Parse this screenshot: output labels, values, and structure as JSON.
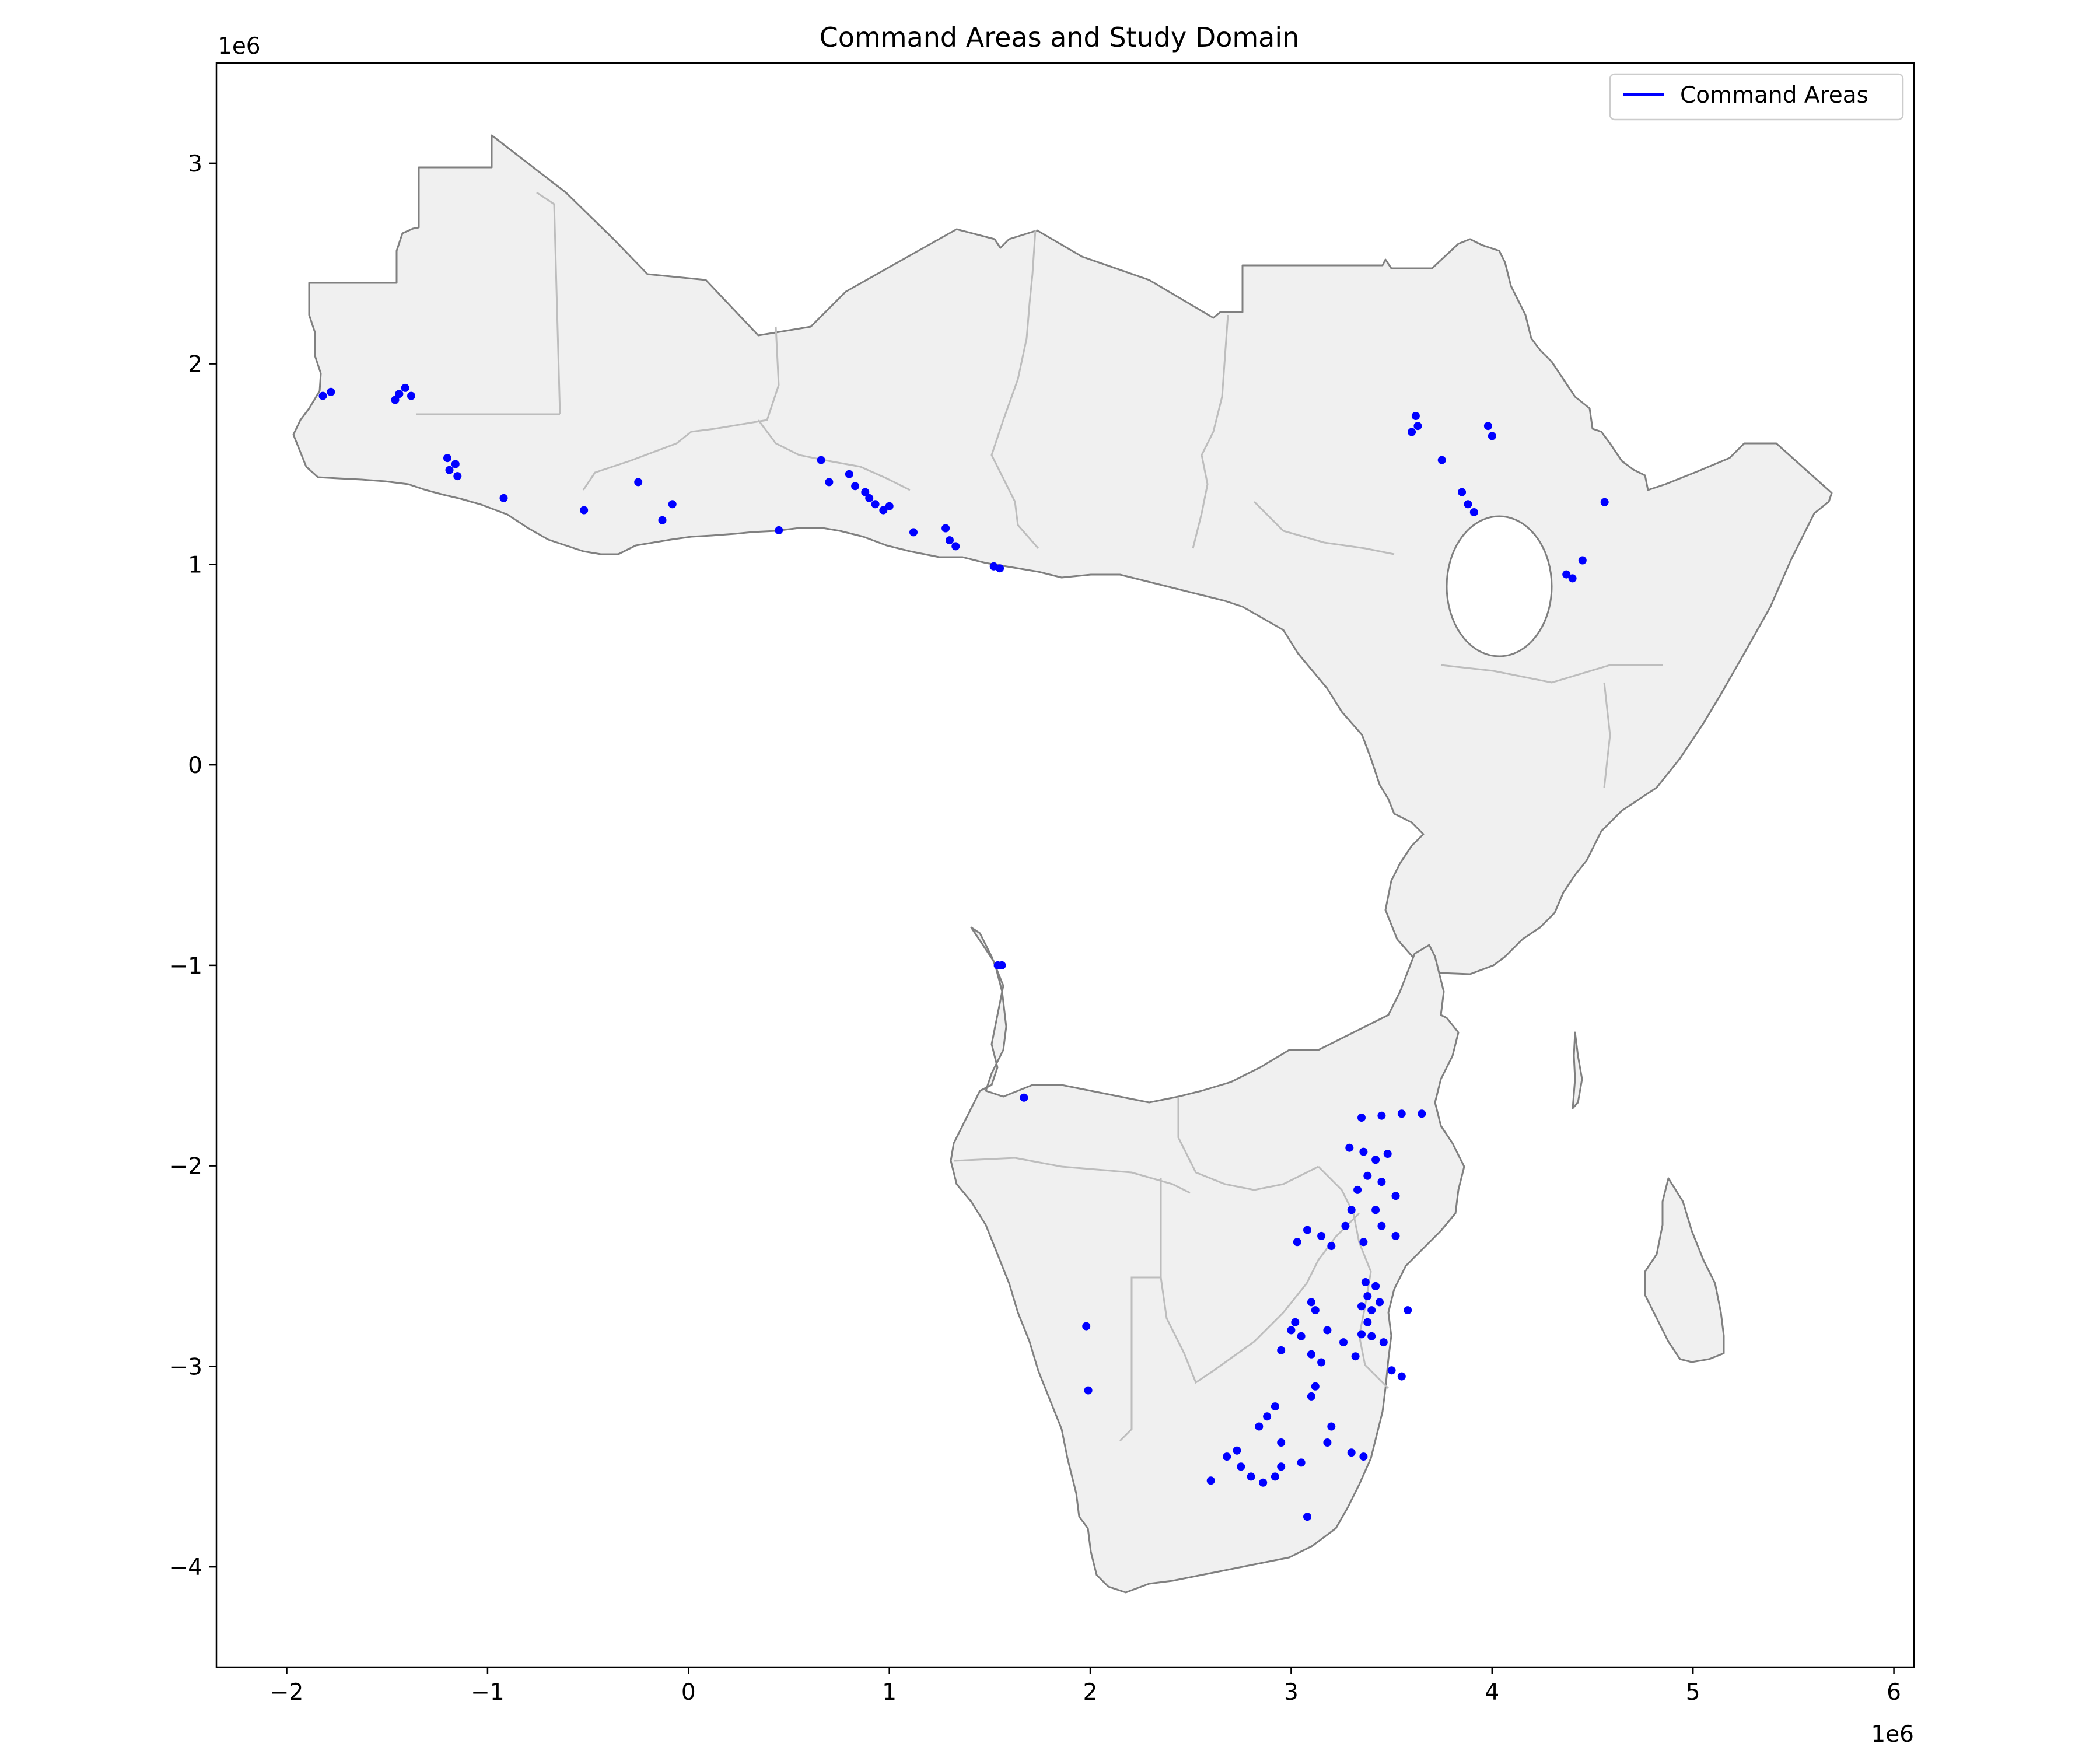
{
  "chart_data": {
    "type": "scatter",
    "title": "Command Areas and Study Domain",
    "xlabel": "",
    "ylabel": "",
    "x_offset_label": "1e6",
    "y_offset_label": "1e6",
    "xlim": [
      -2.35,
      6.1
    ],
    "ylim": [
      -4.5,
      3.5
    ],
    "x_ticks": [
      -2,
      -1,
      0,
      1,
      2,
      3,
      4,
      5,
      6
    ],
    "x_tick_labels": [
      "−2",
      "−1",
      "0",
      "1",
      "2",
      "3",
      "4",
      "5",
      "6"
    ],
    "y_ticks": [
      3,
      2,
      1,
      0,
      -1,
      -2,
      -3,
      -4
    ],
    "y_tick_labels": [
      "3",
      "2",
      "1",
      "0",
      "−1",
      "−2",
      "−3",
      "−4"
    ],
    "grid": false,
    "legend": {
      "position": "top-right",
      "entries": [
        "Command Areas"
      ]
    },
    "domain_style": {
      "fill": "#f0f0f0",
      "coast": "#808080",
      "borders": "#bdbdbd"
    },
    "series": [
      {
        "name": "Command Areas",
        "color": "#0000ff",
        "points": [
          [
            -1.82,
            1.84
          ],
          [
            -1.78,
            1.86
          ],
          [
            -1.44,
            1.85
          ],
          [
            -1.41,
            1.88
          ],
          [
            -1.38,
            1.84
          ],
          [
            -1.46,
            1.82
          ],
          [
            -1.2,
            1.53
          ],
          [
            -1.16,
            1.5
          ],
          [
            -1.19,
            1.47
          ],
          [
            -1.15,
            1.44
          ],
          [
            -0.92,
            1.33
          ],
          [
            -0.52,
            1.27
          ],
          [
            -0.25,
            1.41
          ],
          [
            -0.08,
            1.3
          ],
          [
            -0.13,
            1.22
          ],
          [
            0.45,
            1.17
          ],
          [
            0.66,
            1.52
          ],
          [
            0.7,
            1.41
          ],
          [
            0.8,
            1.45
          ],
          [
            0.83,
            1.39
          ],
          [
            0.88,
            1.36
          ],
          [
            0.9,
            1.33
          ],
          [
            0.93,
            1.3
          ],
          [
            0.97,
            1.27
          ],
          [
            1.0,
            1.29
          ],
          [
            1.12,
            1.16
          ],
          [
            1.28,
            1.18
          ],
          [
            1.3,
            1.12
          ],
          [
            1.33,
            1.09
          ],
          [
            1.52,
            0.99
          ],
          [
            1.55,
            0.98
          ],
          [
            3.62,
            1.74
          ],
          [
            3.6,
            1.66
          ],
          [
            3.63,
            1.69
          ],
          [
            3.75,
            1.52
          ],
          [
            3.98,
            1.69
          ],
          [
            4.0,
            1.64
          ],
          [
            3.85,
            1.36
          ],
          [
            3.88,
            1.3
          ],
          [
            3.91,
            1.26
          ],
          [
            4.37,
            0.95
          ],
          [
            4.4,
            0.93
          ],
          [
            4.45,
            1.02
          ],
          [
            4.56,
            1.31
          ],
          [
            1.54,
            -1.0
          ],
          [
            1.56,
            -1.0
          ],
          [
            1.67,
            -1.66
          ],
          [
            3.45,
            -1.75
          ],
          [
            3.55,
            -1.74
          ],
          [
            3.65,
            -1.74
          ],
          [
            3.35,
            -1.76
          ],
          [
            3.29,
            -1.91
          ],
          [
            3.36,
            -1.93
          ],
          [
            3.42,
            -1.97
          ],
          [
            3.48,
            -1.94
          ],
          [
            3.38,
            -2.05
          ],
          [
            3.45,
            -2.08
          ],
          [
            3.33,
            -2.12
          ],
          [
            3.52,
            -2.15
          ],
          [
            3.3,
            -2.22
          ],
          [
            3.42,
            -2.22
          ],
          [
            3.27,
            -2.3
          ],
          [
            3.45,
            -2.3
          ],
          [
            3.08,
            -2.32
          ],
          [
            3.15,
            -2.35
          ],
          [
            3.03,
            -2.38
          ],
          [
            3.2,
            -2.4
          ],
          [
            3.36,
            -2.38
          ],
          [
            3.52,
            -2.35
          ],
          [
            3.37,
            -2.58
          ],
          [
            3.42,
            -2.6
          ],
          [
            3.38,
            -2.65
          ],
          [
            3.35,
            -2.7
          ],
          [
            3.4,
            -2.72
          ],
          [
            3.44,
            -2.68
          ],
          [
            3.38,
            -2.78
          ],
          [
            3.1,
            -2.68
          ],
          [
            3.12,
            -2.72
          ],
          [
            3.02,
            -2.78
          ],
          [
            3.0,
            -2.82
          ],
          [
            3.05,
            -2.85
          ],
          [
            3.18,
            -2.82
          ],
          [
            3.26,
            -2.88
          ],
          [
            3.35,
            -2.84
          ],
          [
            3.4,
            -2.85
          ],
          [
            3.46,
            -2.88
          ],
          [
            3.58,
            -2.72
          ],
          [
            2.95,
            -2.92
          ],
          [
            3.1,
            -2.94
          ],
          [
            3.15,
            -2.98
          ],
          [
            3.32,
            -2.95
          ],
          [
            3.5,
            -3.02
          ],
          [
            3.55,
            -3.05
          ],
          [
            3.1,
            -3.15
          ],
          [
            3.12,
            -3.1
          ],
          [
            2.92,
            -3.2
          ],
          [
            2.88,
            -3.25
          ],
          [
            2.84,
            -3.3
          ],
          [
            3.2,
            -3.3
          ],
          [
            2.73,
            -3.42
          ],
          [
            2.68,
            -3.45
          ],
          [
            2.75,
            -3.5
          ],
          [
            2.8,
            -3.55
          ],
          [
            2.86,
            -3.58
          ],
          [
            2.92,
            -3.55
          ],
          [
            2.95,
            -3.5
          ],
          [
            2.6,
            -3.57
          ],
          [
            3.05,
            -3.48
          ],
          [
            3.3,
            -3.43
          ],
          [
            3.36,
            -3.45
          ],
          [
            3.18,
            -3.38
          ],
          [
            2.95,
            -3.38
          ],
          [
            3.08,
            -3.75
          ],
          [
            1.98,
            -2.8
          ],
          [
            1.99,
            -3.12
          ]
        ]
      }
    ]
  }
}
